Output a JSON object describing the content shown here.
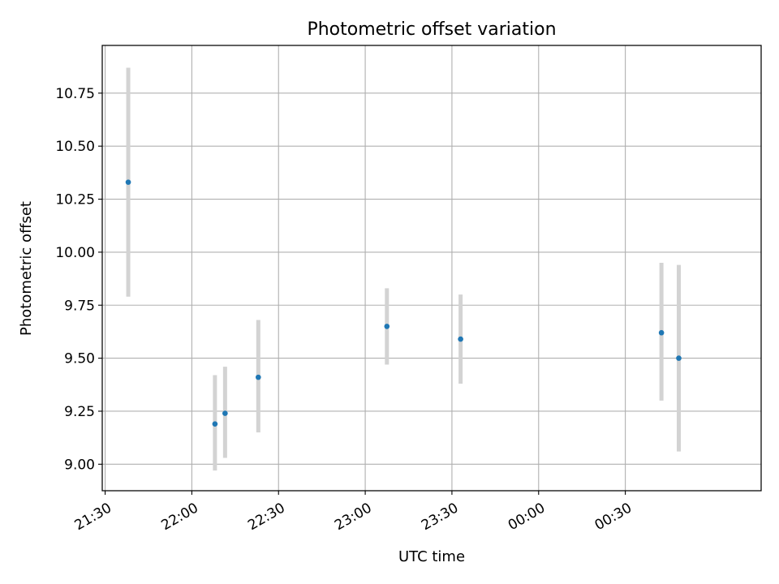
{
  "chart_data": {
    "type": "scatter",
    "title": "Photometric offset variation",
    "xlabel": "UTC time",
    "ylabel": "Photometric offset",
    "xlim": [
      "21:29",
      "01:17"
    ],
    "ylim": [
      8.875,
      10.975
    ],
    "x_ticks": [
      "21:30",
      "22:00",
      "22:30",
      "23:00",
      "23:30",
      "00:00",
      "00:30"
    ],
    "y_ticks": [
      "9.00",
      "9.25",
      "9.50",
      "9.75",
      "10.00",
      "10.25",
      "10.50",
      "10.75"
    ],
    "grid": true,
    "colors": {
      "point": "#1f77b4",
      "errorbar": "#d3d3d3",
      "grid": "#b0b0b0"
    },
    "points": [
      {
        "time": "21:38",
        "y": 10.33,
        "y_low": 9.79,
        "y_high": 10.87
      },
      {
        "time": "22:08",
        "y": 9.19,
        "y_low": 8.97,
        "y_high": 9.42
      },
      {
        "time": "22:11:30",
        "y": 9.24,
        "y_low": 9.03,
        "y_high": 9.46
      },
      {
        "time": "22:23",
        "y": 9.41,
        "y_low": 9.15,
        "y_high": 9.68
      },
      {
        "time": "23:07:30",
        "y": 9.65,
        "y_low": 9.47,
        "y_high": 9.83
      },
      {
        "time": "23:33",
        "y": 9.59,
        "y_low": 9.38,
        "y_high": 9.8
      },
      {
        "time": "00:42:30",
        "y": 9.62,
        "y_low": 9.3,
        "y_high": 9.95
      },
      {
        "time": "00:48:30",
        "y": 9.5,
        "y_low": 9.06,
        "y_high": 9.94
      }
    ]
  }
}
